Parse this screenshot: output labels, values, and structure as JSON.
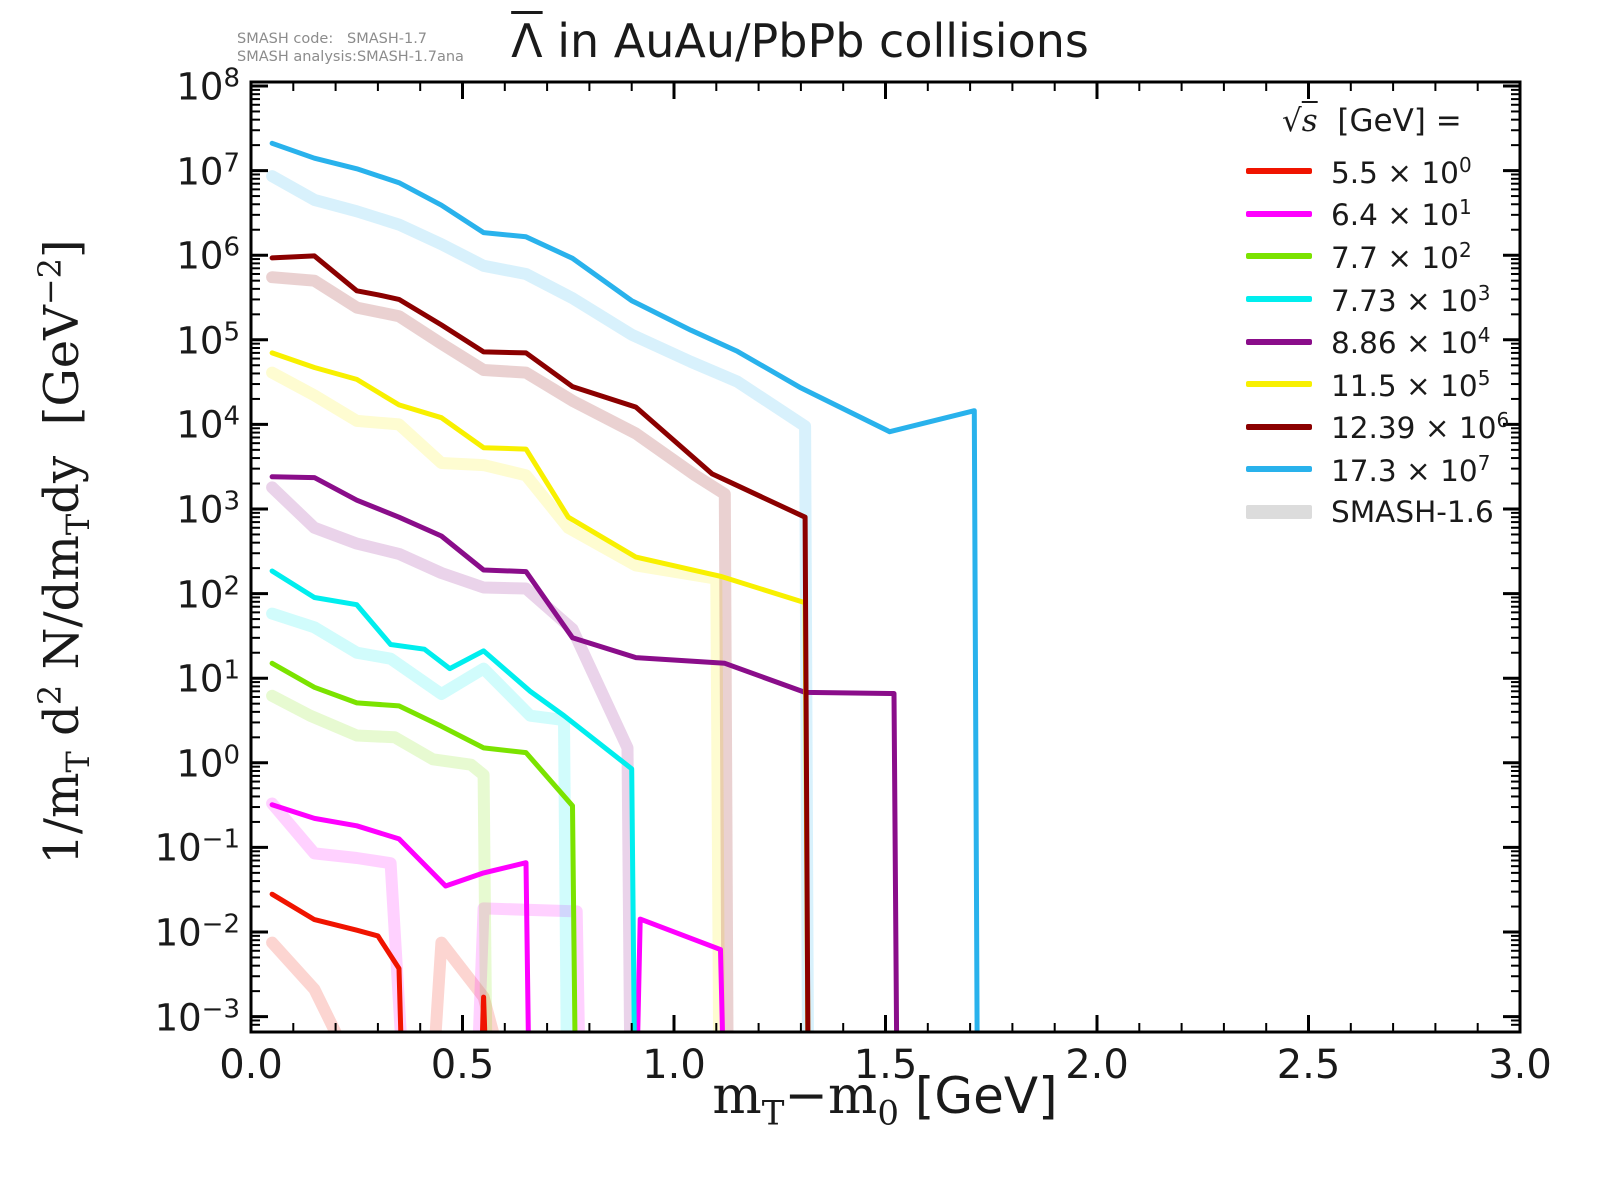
{
  "title": {
    "particle": "Λ",
    "particle_has_overbar": true,
    "rest": " in AuAu/PbPb collisions"
  },
  "corner_note": {
    "line1": {
      "label": "SMASH code:",
      "value": "SMASH-1.7"
    },
    "line2": {
      "label": "SMASH analysis:",
      "value": "SMASH-1.7ana"
    }
  },
  "chart_data": {
    "type": "line",
    "title": "Λ̄ in AuAu/PbPb collisions",
    "xlabel": "mT−m0 [GeV]",
    "ylabel": "1/mT d2 N/dmTdy  [GeV−2]",
    "xlabel_segments": [
      {
        "t": "m",
        "f": "serif"
      },
      {
        "t": "T",
        "f": "serif",
        "s": "sub"
      },
      {
        "t": "−m",
        "f": "serif"
      },
      {
        "t": "0",
        "f": "serif",
        "s": "sub"
      },
      {
        "t": " [GeV]",
        "f": "sans"
      }
    ],
    "ylabel_segments": [
      {
        "t": "1/m"
      },
      {
        "t": "T",
        "s": "sub"
      },
      {
        "t": " d"
      },
      {
        "t": "2",
        "s": "sup"
      },
      {
        "t": " N/dm"
      },
      {
        "t": "T",
        "s": "sub"
      },
      {
        "t": "dy  [GeV"
      },
      {
        "t": "−2",
        "s": "sup"
      },
      {
        "t": "]"
      }
    ],
    "xlim": [
      0.0,
      3.0
    ],
    "ylim_log10": [
      -3.1,
      8.07
    ],
    "grid": false,
    "x_ticks": {
      "major": [
        0.0,
        0.5,
        1.0,
        1.5,
        2.0,
        2.5,
        3.0
      ],
      "labels": [
        "0.0",
        "0.5",
        "1.0",
        "1.5",
        "2.0",
        "2.5",
        "3.0"
      ],
      "minor_step": 0.1
    },
    "y_ticks": {
      "base_text": "10",
      "major_exponents": [
        8,
        7,
        6,
        5,
        4,
        3,
        2,
        1,
        0,
        -1,
        -2,
        -3
      ],
      "labels": [
        "10^8",
        "10^7",
        "10^6",
        "10^5",
        "10^4",
        "10^3",
        "10^2",
        "10^1",
        "10^0",
        "10^-1",
        "10^-2",
        "10^-3"
      ]
    },
    "legend": {
      "position": "upper right",
      "header_sqrt": "√",
      "header_s": "s",
      "header_rest": "  [GeV] =",
      "multiplier_text": " × 10",
      "entries": [
        {
          "sqrt_s_gev": "5.5",
          "scale_exponent": "0",
          "color": "#f01400"
        },
        {
          "sqrt_s_gev": "6.4",
          "scale_exponent": "1",
          "color": "#ff00ff"
        },
        {
          "sqrt_s_gev": "7.7",
          "scale_exponent": "2",
          "color": "#7be300"
        },
        {
          "sqrt_s_gev": "7.73",
          "scale_exponent": "3",
          "color": "#00eeee"
        },
        {
          "sqrt_s_gev": "8.86",
          "scale_exponent": "4",
          "color": "#8a0d8a"
        },
        {
          "sqrt_s_gev": "11.5",
          "scale_exponent": "5",
          "color": "#f8f000"
        },
        {
          "sqrt_s_gev": "12.39",
          "scale_exponent": "6",
          "color": "#8b0000"
        },
        {
          "sqrt_s_gev": "17.3",
          "scale_exponent": "7",
          "color": "#29b2ec"
        }
      ],
      "smash_entry": {
        "label": "SMASH-1.6",
        "color": "#dcdcdc"
      }
    },
    "series": [
      {
        "name": "sqrts-5.5",
        "variant": "smash17",
        "color": "#f01400",
        "segments": [
          [
            [
              0.05,
              0.028
            ],
            [
              0.15,
              0.014
            ],
            [
              0.25,
              0.0105
            ],
            [
              0.3,
              0.009
            ],
            [
              0.35,
              0.0037
            ],
            [
              0.357,
              0.0002
            ]
          ],
          [
            [
              0.544,
              0.0002
            ],
            [
              0.55,
              0.0017
            ],
            [
              0.556,
              0.0002
            ]
          ]
        ]
      },
      {
        "name": "sqrts-6.4",
        "variant": "smash17",
        "color": "#ff00ff",
        "segments": [
          [
            [
              0.05,
              0.32
            ],
            [
              0.15,
              0.22
            ],
            [
              0.25,
              0.18
            ],
            [
              0.35,
              0.126
            ],
            [
              0.46,
              0.035
            ],
            [
              0.55,
              0.05
            ],
            [
              0.65,
              0.066
            ],
            [
              0.657,
              0.0002
            ]
          ],
          [
            [
              0.912,
              0.0002
            ],
            [
              0.92,
              0.0142
            ],
            [
              1.11,
              0.0062
            ],
            [
              1.117,
              0.0002
            ]
          ]
        ]
      },
      {
        "name": "sqrts-7.7",
        "variant": "smash17",
        "color": "#7be300",
        "segments": [
          [
            [
              0.05,
              15
            ],
            [
              0.15,
              7.8
            ],
            [
              0.25,
              5.1
            ],
            [
              0.35,
              4.7
            ],
            [
              0.45,
              2.7
            ],
            [
              0.55,
              1.5
            ],
            [
              0.65,
              1.32
            ],
            [
              0.76,
              0.31
            ],
            [
              0.767,
              0.0002
            ]
          ]
        ]
      },
      {
        "name": "sqrts-7.73",
        "variant": "smash17",
        "color": "#00eeee",
        "segments": [
          [
            [
              0.05,
              185
            ],
            [
              0.15,
              90
            ],
            [
              0.25,
              74
            ],
            [
              0.33,
              25
            ],
            [
              0.41,
              22
            ],
            [
              0.47,
              13
            ],
            [
              0.55,
              21
            ],
            [
              0.66,
              7
            ],
            [
              0.74,
              3.6
            ],
            [
              0.9,
              0.85
            ],
            [
              0.907,
              0.0002
            ]
          ]
        ]
      },
      {
        "name": "sqrts-8.86",
        "variant": "smash17",
        "color": "#8a0d8a",
        "segments": [
          [
            [
              0.05,
              2400
            ],
            [
              0.15,
              2350
            ],
            [
              0.25,
              1270
            ],
            [
              0.35,
              800
            ],
            [
              0.45,
              480
            ],
            [
              0.55,
              190
            ],
            [
              0.65,
              182
            ],
            [
              0.76,
              30
            ],
            [
              0.91,
              17.5
            ],
            [
              1.12,
              15
            ],
            [
              1.31,
              6.8
            ],
            [
              1.52,
              6.6
            ],
            [
              1.527,
              0.0002
            ]
          ]
        ]
      },
      {
        "name": "sqrts-11.5",
        "variant": "smash17",
        "color": "#f8f000",
        "segments": [
          [
            [
              0.05,
              70000
            ],
            [
              0.15,
              47000
            ],
            [
              0.25,
              34000
            ],
            [
              0.35,
              17000
            ],
            [
              0.45,
              12000
            ],
            [
              0.55,
              5300
            ],
            [
              0.65,
              5100
            ],
            [
              0.75,
              800
            ],
            [
              0.91,
              270
            ],
            [
              1.11,
              160
            ],
            [
              1.31,
              78
            ],
            [
              1.317,
              0.0002
            ]
          ]
        ]
      },
      {
        "name": "sqrts-12.39",
        "variant": "smash17",
        "color": "#8b0000",
        "segments": [
          [
            [
              0.05,
              930000
            ],
            [
              0.15,
              980000
            ],
            [
              0.25,
              380000
            ],
            [
              0.3,
              340000
            ],
            [
              0.35,
              300000
            ],
            [
              0.45,
              150000
            ],
            [
              0.55,
              72000
            ],
            [
              0.65,
              70000
            ],
            [
              0.76,
              28000
            ],
            [
              0.91,
              16000
            ],
            [
              1.09,
              2600
            ],
            [
              1.13,
              2100
            ],
            [
              1.31,
              800
            ],
            [
              1.317,
              0.0002
            ]
          ]
        ]
      },
      {
        "name": "sqrts-17.3",
        "variant": "smash17",
        "color": "#29b2ec",
        "segments": [
          [
            [
              0.05,
              21000000
            ],
            [
              0.15,
              14000000
            ],
            [
              0.25,
              10500000
            ],
            [
              0.35,
              7200000
            ],
            [
              0.45,
              3900000
            ],
            [
              0.55,
              1850000
            ],
            [
              0.65,
              1650000
            ],
            [
              0.76,
              920000
            ],
            [
              0.9,
              290000
            ],
            [
              1.04,
              130000
            ],
            [
              1.15,
              73000
            ],
            [
              1.3,
              27000
            ],
            [
              1.51,
              8200
            ],
            [
              1.71,
              14500
            ],
            [
              1.717,
              0.0002
            ]
          ]
        ]
      },
      {
        "name": "sqrts-5.5-smash16",
        "variant": "smash16",
        "color": "#f01400",
        "segments": [
          [
            [
              0.05,
              0.0075
            ],
            [
              0.15,
              0.0021
            ],
            [
              0.25,
              0.0002
            ]
          ],
          [
            [
              0.43,
              0.0002
            ],
            [
              0.45,
              0.0075
            ],
            [
              0.55,
              0.0017
            ],
            [
              0.6,
              0.0002
            ]
          ]
        ]
      },
      {
        "name": "sqrts-6.4-smash16",
        "variant": "smash16",
        "color": "#ff00ff",
        "segments": [
          [
            [
              0.05,
              0.33
            ],
            [
              0.15,
              0.085
            ],
            [
              0.25,
              0.075
            ],
            [
              0.33,
              0.065
            ],
            [
              0.36,
              0.0002
            ]
          ],
          [
            [
              0.535,
              0.0002
            ],
            [
              0.55,
              0.019
            ],
            [
              0.77,
              0.0175
            ],
            [
              0.777,
              0.0002
            ]
          ]
        ]
      },
      {
        "name": "sqrts-7.7-smash16",
        "variant": "smash16",
        "color": "#7be300",
        "segments": [
          [
            [
              0.05,
              6.2
            ],
            [
              0.14,
              3.6
            ],
            [
              0.25,
              2.1
            ],
            [
              0.34,
              2.0
            ],
            [
              0.43,
              1.1
            ],
            [
              0.52,
              0.95
            ],
            [
              0.55,
              0.72
            ],
            [
              0.557,
              0.0002
            ]
          ]
        ]
      },
      {
        "name": "sqrts-7.73-smash16",
        "variant": "smash16",
        "color": "#00eeee",
        "segments": [
          [
            [
              0.05,
              58
            ],
            [
              0.15,
              40
            ],
            [
              0.25,
              20
            ],
            [
              0.33,
              17
            ],
            [
              0.45,
              6.5
            ],
            [
              0.55,
              13
            ],
            [
              0.66,
              3.6
            ],
            [
              0.74,
              3.2
            ],
            [
              0.747,
              0.0002
            ]
          ]
        ]
      },
      {
        "name": "sqrts-8.86-smash16",
        "variant": "smash16",
        "color": "#8a0d8a",
        "segments": [
          [
            [
              0.05,
              1800
            ],
            [
              0.15,
              600
            ],
            [
              0.25,
              390
            ],
            [
              0.35,
              295
            ],
            [
              0.45,
              175
            ],
            [
              0.55,
              118
            ],
            [
              0.65,
              115
            ],
            [
              0.76,
              38
            ],
            [
              0.89,
              1.5
            ],
            [
              0.897,
              0.0002
            ]
          ]
        ]
      },
      {
        "name": "sqrts-11.5-smash16",
        "variant": "smash16",
        "color": "#f8f000",
        "segments": [
          [
            [
              0.05,
              41000
            ],
            [
              0.15,
              22000
            ],
            [
              0.25,
              11000
            ],
            [
              0.35,
              10000
            ],
            [
              0.45,
              3500
            ],
            [
              0.55,
              3300
            ],
            [
              0.65,
              2500
            ],
            [
              0.75,
              600
            ],
            [
              0.91,
              215
            ],
            [
              1.1,
              150
            ],
            [
              1.107,
              0.0002
            ]
          ]
        ]
      },
      {
        "name": "sqrts-12.39-smash16",
        "variant": "smash16",
        "color": "#8b0000",
        "segments": [
          [
            [
              0.05,
              550000
            ],
            [
              0.15,
              500000
            ],
            [
              0.25,
              240000
            ],
            [
              0.35,
              190000
            ],
            [
              0.45,
              90000
            ],
            [
              0.55,
              44000
            ],
            [
              0.65,
              41000
            ],
            [
              0.76,
              19000
            ],
            [
              0.91,
              7800
            ],
            [
              1.05,
              2500
            ],
            [
              1.12,
              1500
            ],
            [
              1.127,
              0.0002
            ]
          ]
        ]
      },
      {
        "name": "sqrts-17.3-smash16",
        "variant": "smash16",
        "color": "#29b2ec",
        "segments": [
          [
            [
              0.05,
              8600000
            ],
            [
              0.15,
              4500000
            ],
            [
              0.25,
              3300000
            ],
            [
              0.35,
              2300000
            ],
            [
              0.45,
              1350000
            ],
            [
              0.55,
              750000
            ],
            [
              0.65,
              600000
            ],
            [
              0.76,
              310000
            ],
            [
              0.9,
              115000
            ],
            [
              1.04,
              55000
            ],
            [
              1.15,
              32000
            ],
            [
              1.31,
              9500
            ],
            [
              1.317,
              0.0002
            ]
          ]
        ]
      }
    ],
    "style": {
      "line_width_main": 5,
      "line_width_smash16": 12,
      "smash16_opacity": 0.18,
      "axis_color": "#000000",
      "text_color": "#1a1a1a",
      "note_color": "#8c8c8c"
    }
  }
}
